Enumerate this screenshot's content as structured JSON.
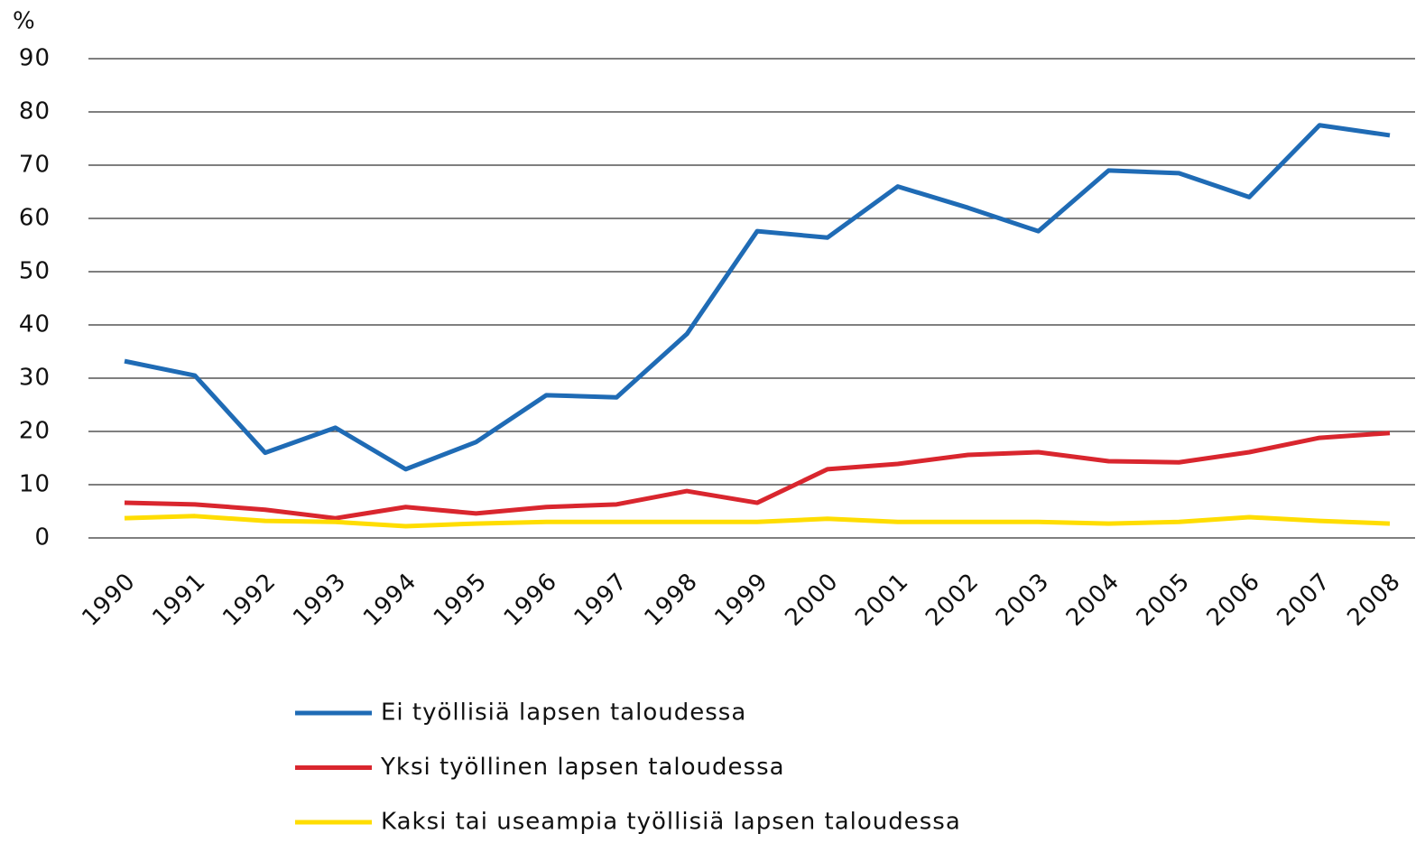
{
  "chart_data": {
    "type": "line",
    "y_label": "%",
    "categories": [
      "1990",
      "1991",
      "1992",
      "1993",
      "1994",
      "1995",
      "1996",
      "1997",
      "1998",
      "1999",
      "2000",
      "2001",
      "2002",
      "2003",
      "2004",
      "2005",
      "2006",
      "2007",
      "2008"
    ],
    "series": [
      {
        "name": "Ei työllisiä lapsen taloudessa",
        "color": "#1f6bb5",
        "values": [
          33.2,
          30.5,
          16,
          20.7,
          12.9,
          18,
          26.8,
          26.4,
          38.3,
          57.6,
          56.4,
          66,
          62,
          57.6,
          69,
          68.5,
          64,
          77.5,
          75.6
        ]
      },
      {
        "name": "Yksi työllinen lapsen taloudessa",
        "color": "#d9262e",
        "values": [
          6.6,
          6.3,
          5.3,
          3.7,
          5.8,
          4.6,
          5.8,
          6.3,
          8.8,
          6.6,
          12.9,
          13.9,
          15.6,
          16.1,
          14.4,
          14.2,
          16.1,
          18.8,
          19.7
        ]
      },
      {
        "name": "Kaksi tai useampia työllisiä lapsen taloudessa",
        "color": "#ffdd00",
        "values": [
          3.7,
          4.1,
          3.2,
          3,
          2.2,
          2.7,
          3,
          3,
          3,
          3,
          3.6,
          3,
          3,
          3,
          2.7,
          3,
          3.9,
          3.2,
          2.7
        ]
      }
    ],
    "ylim": [
      0,
      90
    ],
    "yticks": [
      0,
      10,
      20,
      30,
      40,
      50,
      60,
      70,
      80,
      90
    ],
    "grid": true,
    "legend": "bottom"
  }
}
